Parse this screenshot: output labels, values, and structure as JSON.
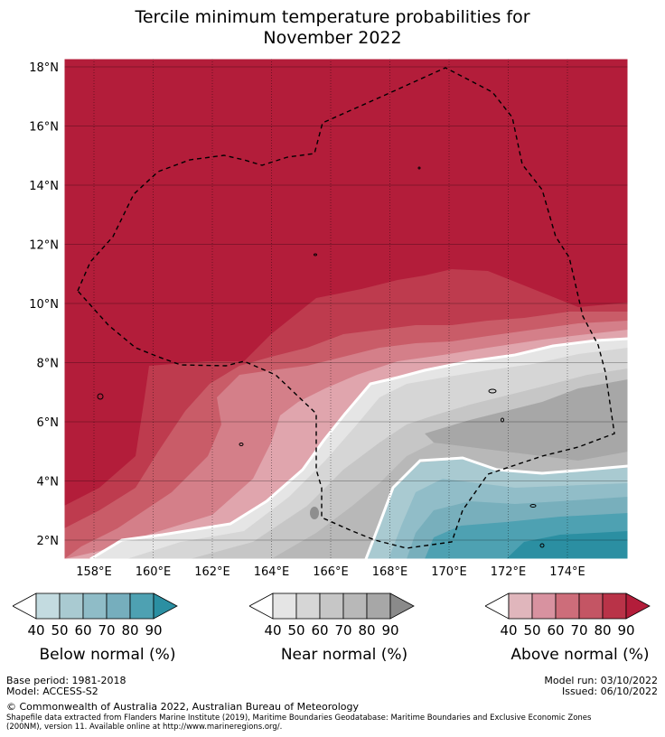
{
  "title_line1": "Tercile minimum temperature probabilities for",
  "title_line2": "November 2022",
  "lat_ticks": [
    "18°N",
    "16°N",
    "14°N",
    "12°N",
    "10°N",
    "8°N",
    "6°N",
    "4°N",
    "2°N"
  ],
  "lon_ticks": [
    "158°E",
    "160°E",
    "162°E",
    "164°E",
    "166°E",
    "168°E",
    "170°E",
    "172°E",
    "174°E"
  ],
  "colors": {
    "above_90": "#b31d3a",
    "above_80": "#be3b4e",
    "above_70": "#c95c68",
    "above_60": "#d47f89",
    "above_50": "#e0a5ad",
    "near_80": "#a7a7a7",
    "near_70": "#b8b8b8",
    "near_60": "#c6c6c6",
    "near_50": "#d6d6d6",
    "near_40": "#e5e5e5",
    "below_50": "#a9cad1",
    "below_60": "#91bdc8",
    "below_70": "#78afbc",
    "below_80": "#4ea1b2",
    "below_90": "#2b8fa2"
  },
  "legends": [
    {
      "key": "below",
      "label": "Below normal (%)",
      "ticks": [
        "40",
        "50",
        "60",
        "70",
        "80",
        "90"
      ],
      "bins": [
        "#c3dbe0",
        "#a9cad1",
        "#8fbcc7",
        "#76aebd",
        "#4ea1b2"
      ],
      "end": "#2b8fa2"
    },
    {
      "key": "near",
      "label": "Near normal (%)",
      "ticks": [
        "40",
        "50",
        "60",
        "70",
        "80",
        "90"
      ],
      "bins": [
        "#e5e5e5",
        "#d6d6d6",
        "#c6c6c6",
        "#b8b8b8",
        "#a7a7a7"
      ],
      "end": "#8a8a8a"
    },
    {
      "key": "above",
      "label": "Above normal (%)",
      "ticks": [
        "40",
        "50",
        "60",
        "70",
        "80",
        "90"
      ],
      "bins": [
        "#e0b6bc",
        "#d892a0",
        "#cd6d7a",
        "#c45564",
        "#b93348"
      ],
      "end": "#b31d3a"
    }
  ],
  "footer": {
    "base_period": "Base period: 1981-2018",
    "model": "Model: ACCESS-S2",
    "model_run": "Model run: 03/10/2022",
    "issued": "Issued: 06/10/2022",
    "copyright": "© Commonwealth of Australia 2022, Australian Bureau of Meteorology",
    "shapefile_1": "Shapefile data extracted from Flanders Marine Institute (2019), Maritime Boundaries Geodatabase: Maritime Boundaries and Exclusive Economic Zones",
    "shapefile_2": "(200NM), version 11. Available online at http://www.marineregions.org/."
  }
}
